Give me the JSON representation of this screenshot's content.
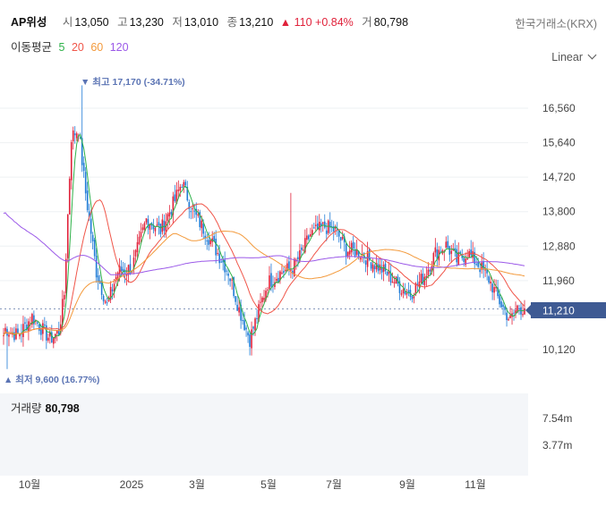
{
  "header": {
    "name": "AP위성",
    "open_label": "시",
    "open": "13,050",
    "high_label": "고",
    "high": "13,230",
    "low_label": "저",
    "low": "13,010",
    "close_label": "종",
    "close": "13,210",
    "change": "▲ 110 +0.84%",
    "volume_label": "거",
    "volume": "80,798",
    "exchange": "한국거래소(KRX)"
  },
  "ma_legend": {
    "label": "이동평균",
    "items": [
      {
        "text": "5",
        "color": "#2fb24a"
      },
      {
        "text": "20",
        "color": "#f0564a"
      },
      {
        "text": "60",
        "color": "#f39a3c"
      },
      {
        "text": "120",
        "color": "#9b59e8"
      }
    ]
  },
  "scale_label": "Linear",
  "annotations": {
    "high": "▼ 최고 17,170 (-34.71%)",
    "low": "▲ 최저 9,600 (16.77%)",
    "current": "11,210"
  },
  "volume_panel": {
    "label": "거래량",
    "value": "80,798"
  },
  "colors": {
    "up": "#e0213a",
    "down": "#1f7bd6",
    "current_badge": "#3e5a93",
    "annotation": "#5b74b4"
  },
  "chart_data": {
    "type": "candlestick",
    "y_ticks": [
      16560,
      15640,
      14720,
      13800,
      12880,
      11960,
      11040,
      10120
    ],
    "y_tick_labels": [
      "16,560",
      "15,640",
      "14,720",
      "13,800",
      "12,880",
      "11,960",
      "11,040",
      "10,120"
    ],
    "volume_ticks": [
      "7.54m",
      "3.77m"
    ],
    "x_labels": [
      "10월",
      "2025",
      "3월",
      "5월",
      "7월",
      "9월",
      "11월"
    ],
    "high": 17170,
    "low": 9600,
    "current": 11210
  }
}
